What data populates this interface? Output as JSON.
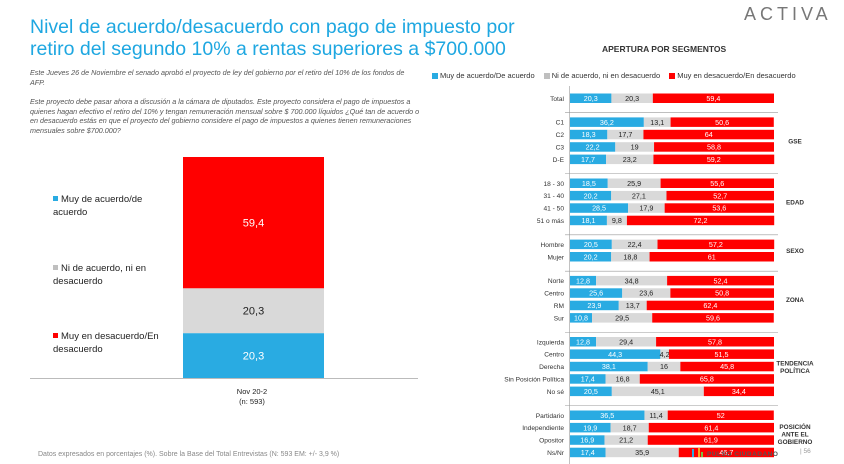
{
  "header": {
    "title": "Nivel de acuerdo/desacuerdo con pago de impuesto por retiro del segundo 10% a rentas superiores a $700.000",
    "brand": "ACTIVA"
  },
  "intro": {
    "p1": "Este Jueves 26 de Noviembre el senado aprobó el proyecto de ley del gobierno por el retiro del 10% de los fondos de AFP.",
    "p2": "Este proyecto debe pasar ahora a discusión a la cámara de diputados. Este proyecto considera  el pago de impuestos a quienes hagan efectivo el retiro del 10% y tengan remuneración mensual sobre $ 700.000 líquidos ¿Qué tan de acuerdo o en desacuerdo estás en que el proyecto del gobierno considere el pago de impuestos a quienes tienen remuneraciones mensuales sobre $700.000?"
  },
  "footnote": "Datos expresados en porcentajes (%). Sobre la Base del Total Entrevistas (N: 593  EM: +/- 3,9 %)",
  "footer": {
    "logo": "PULSO CIUDADANO",
    "page": "56"
  },
  "colors": {
    "agree": "#29abe2",
    "neutral": "#d9d9d9",
    "disagree": "#ff0000",
    "title": "#1ea7e1"
  },
  "chart_data": [
    {
      "type": "bar",
      "stacked": true,
      "categories": [
        "Nov 20-2"
      ],
      "category_sub": "(n: 593)",
      "series": [
        {
          "name": "Muy de acuerdo/de acuerdo",
          "values": [
            20.3
          ],
          "labels": [
            "20,3"
          ]
        },
        {
          "name": "Ni de acuerdo, ni en desacuerdo",
          "values": [
            20.3
          ],
          "labels": [
            "20,3"
          ]
        },
        {
          "name": "Muy en desacuerdo/En desacuerdo",
          "values": [
            59.4
          ],
          "labels": [
            "59,4"
          ]
        }
      ],
      "ylim": [
        0,
        100
      ],
      "legend": "left"
    },
    {
      "type": "bar",
      "orientation": "horizontal",
      "stacked": true,
      "title": "APERTURA POR SEGMENTOS",
      "legend_entries": [
        "Muy de acuerdo/De acuerdo",
        "Ni de acuerdo, ni en desacuerdo",
        "Muy en desacuerdo/En desacuerdo"
      ],
      "xlim": [
        0,
        100
      ],
      "groups": [
        {
          "name": "",
          "rows": [
            {
              "label": "Total",
              "values": [
                20.3,
                20.3,
                59.4
              ],
              "labels": [
                "20,3",
                "20,3",
                "59,4"
              ]
            }
          ]
        },
        {
          "name": "GSE",
          "rows": [
            {
              "label": "C1",
              "values": [
                36.2,
                13.1,
                50.6
              ],
              "labels": [
                "36,2",
                "13,1",
                "50,6"
              ]
            },
            {
              "label": "C2",
              "values": [
                18.3,
                17.7,
                64
              ],
              "labels": [
                "18,3",
                "17,7",
                "64"
              ]
            },
            {
              "label": "C3",
              "values": [
                22.2,
                19,
                58.8
              ],
              "labels": [
                "22,2",
                "19",
                "58,8"
              ]
            },
            {
              "label": "D-E",
              "values": [
                17.7,
                23.2,
                59.2
              ],
              "labels": [
                "17,7",
                "23,2",
                "59,2"
              ]
            }
          ]
        },
        {
          "name": "EDAD",
          "rows": [
            {
              "label": "18 - 30",
              "values": [
                18.5,
                25.9,
                55.6
              ],
              "labels": [
                "18,5",
                "25,9",
                "55,6"
              ]
            },
            {
              "label": "31 - 40",
              "values": [
                20.2,
                27.1,
                52.7
              ],
              "labels": [
                "20,2",
                "27,1",
                "52,7"
              ]
            },
            {
              "label": "41 - 50",
              "values": [
                28.5,
                17.9,
                53.6
              ],
              "labels": [
                "28,5",
                "17,9",
                "53,6"
              ]
            },
            {
              "label": "51 o más",
              "values": [
                18.1,
                9.8,
                72.2
              ],
              "labels": [
                "18,1",
                "9,8",
                "72,2"
              ]
            }
          ]
        },
        {
          "name": "SEXO",
          "rows": [
            {
              "label": "Hombre",
              "values": [
                20.5,
                22.4,
                57.2
              ],
              "labels": [
                "20,5",
                "22,4",
                "57,2"
              ]
            },
            {
              "label": "Mujer",
              "values": [
                20.2,
                18.8,
                61
              ],
              "labels": [
                "20,2",
                "18,8",
                "61"
              ]
            }
          ]
        },
        {
          "name": "ZONA",
          "rows": [
            {
              "label": "Norte",
              "values": [
                12.8,
                34.8,
                52.4
              ],
              "labels": [
                "12,8",
                "34,8",
                "52,4"
              ]
            },
            {
              "label": "Centro",
              "values": [
                25.6,
                23.6,
                50.8
              ],
              "labels": [
                "25,6",
                "23,6",
                "50,8"
              ]
            },
            {
              "label": "RM",
              "values": [
                23.9,
                13.7,
                62.4
              ],
              "labels": [
                "23,9",
                "13,7",
                "62,4"
              ]
            },
            {
              "label": "Sur",
              "values": [
                10.8,
                29.5,
                59.6
              ],
              "labels": [
                "10,8",
                "29,5",
                "59,6"
              ]
            }
          ]
        },
        {
          "name": "TENDENCIA POLÍTICA",
          "name_lines": [
            "TENDENCIA",
            "POLÍTICA"
          ],
          "rows": [
            {
              "label": "Izquierda",
              "values": [
                12.8,
                29.4,
                57.8
              ],
              "labels": [
                "12,8",
                "29,4",
                "57,8"
              ]
            },
            {
              "label": "Centro",
              "values": [
                44.3,
                4.2,
                51.5
              ],
              "labels": [
                "44,3",
                "4,2",
                "51,5"
              ]
            },
            {
              "label": "Derecha",
              "values": [
                38.1,
                16,
                45.8
              ],
              "labels": [
                "38,1",
                "16",
                "45,8"
              ]
            },
            {
              "label": "Sin Posición Política",
              "values": [
                17.4,
                16.8,
                65.8
              ],
              "labels": [
                "17,4",
                "16,8",
                "65,8"
              ]
            },
            {
              "label": "No sé",
              "values": [
                20.5,
                45.1,
                34.4
              ],
              "labels": [
                "20,5",
                "45,1",
                "34,4"
              ]
            }
          ]
        },
        {
          "name": "POSICIÓN ANTE EL GOBIERNO",
          "name_lines": [
            "POSICIÓN",
            "ANTE EL",
            "GOBIERNO"
          ],
          "rows": [
            {
              "label": "Partidario",
              "values": [
                36.5,
                11.4,
                52
              ],
              "labels": [
                "36,5",
                "11,4",
                "52"
              ]
            },
            {
              "label": "Independiente",
              "values": [
                19.9,
                18.7,
                61.4
              ],
              "labels": [
                "19,9",
                "18,7",
                "61,4"
              ]
            },
            {
              "label": "Opositor",
              "values": [
                16.9,
                21.2,
                61.9
              ],
              "labels": [
                "16,9",
                "21,2",
                "61,9"
              ]
            },
            {
              "label": "Ns/Nr",
              "values": [
                17.4,
                35.9,
                46.7
              ],
              "labels": [
                "17,4",
                "35,9",
                "46,7"
              ]
            }
          ]
        }
      ]
    }
  ]
}
